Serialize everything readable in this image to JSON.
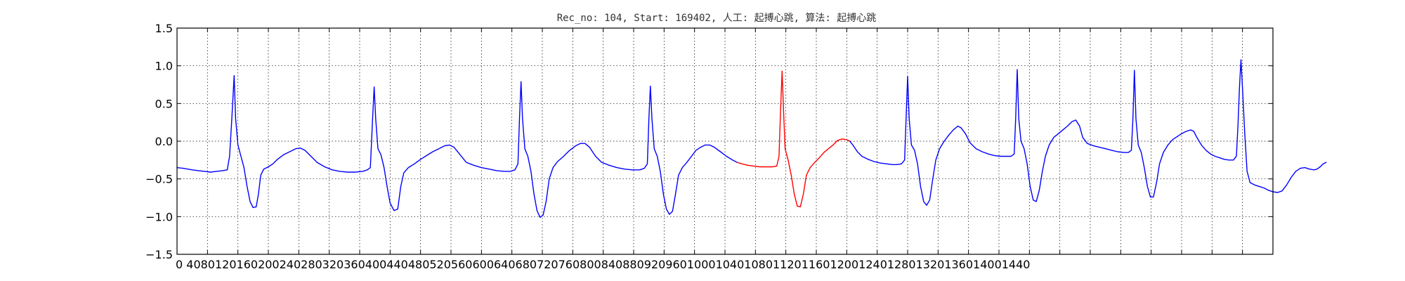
{
  "chart_data": {
    "type": "line",
    "title": "Rec_no: 104, Start: 169402, 人工: 起搏心跳, 算法: 起搏心跳",
    "xlabel": "",
    "ylabel": "",
    "xlim": [
      0,
      1440
    ],
    "ylim": [
      -1.5,
      1.5
    ],
    "grid": true,
    "x_ticks": [
      0,
      40,
      80,
      120,
      160,
      200,
      240,
      280,
      320,
      360,
      400,
      440,
      480,
      520,
      560,
      600,
      640,
      680,
      720,
      760,
      800,
      840,
      880,
      920,
      960,
      1000,
      1040,
      1080,
      1120,
      1160,
      1200,
      1240,
      1280,
      1320,
      1360,
      1400,
      1440
    ],
    "x_tick_text": "0 4080120160200240280320360400440480520560600640680720760800840880920960100010401080112011601200124012801320136014001440",
    "y_ticks": [
      1.5,
      1.0,
      0.5,
      0.0,
      -0.5,
      -1.0,
      -1.5
    ],
    "y_tick_labels": [
      "1.5",
      "1.0",
      "0.5",
      "0.0",
      "−0.5",
      "−1.0",
      "−1.5"
    ],
    "colors": {
      "normal": "#0000ff",
      "highlight": "#ff0000"
    },
    "series": [
      {
        "color": "#0000ff",
        "points": [
          [
            0,
            -0.35
          ],
          [
            8,
            -0.36
          ],
          [
            14,
            -0.37
          ],
          [
            20,
            -0.38
          ],
          [
            28,
            -0.39
          ],
          [
            36,
            -0.4
          ],
          [
            44,
            -0.41
          ],
          [
            52,
            -0.4
          ],
          [
            60,
            -0.39
          ],
          [
            66,
            -0.38
          ],
          [
            69,
            -0.2
          ],
          [
            72,
            0.3
          ],
          [
            75,
            0.87
          ],
          [
            77,
            0.3
          ],
          [
            80,
            -0.05
          ],
          [
            84,
            -0.2
          ],
          [
            88,
            -0.35
          ],
          [
            92,
            -0.6
          ],
          [
            96,
            -0.8
          ],
          [
            100,
            -0.88
          ],
          [
            104,
            -0.87
          ],
          [
            107,
            -0.7
          ],
          [
            110,
            -0.45
          ],
          [
            114,
            -0.37
          ],
          [
            120,
            -0.34
          ],
          [
            126,
            -0.3
          ],
          [
            132,
            -0.24
          ],
          [
            140,
            -0.18
          ],
          [
            148,
            -0.14
          ],
          [
            156,
            -0.1
          ],
          [
            162,
            -0.09
          ],
          [
            168,
            -0.12
          ],
          [
            176,
            -0.2
          ],
          [
            184,
            -0.28
          ],
          [
            194,
            -0.34
          ],
          [
            204,
            -0.38
          ],
          [
            214,
            -0.4
          ],
          [
            224,
            -0.41
          ],
          [
            234,
            -0.41
          ],
          [
            244,
            -0.4
          ],
          [
            250,
            -0.38
          ],
          [
            254,
            -0.35
          ],
          [
            257,
            0.3
          ],
          [
            259,
            0.72
          ],
          [
            261,
            0.3
          ],
          [
            264,
            -0.1
          ],
          [
            268,
            -0.18
          ],
          [
            272,
            -0.35
          ],
          [
            276,
            -0.6
          ],
          [
            280,
            -0.82
          ],
          [
            285,
            -0.92
          ],
          [
            290,
            -0.9
          ],
          [
            294,
            -0.6
          ],
          [
            298,
            -0.42
          ],
          [
            304,
            -0.35
          ],
          [
            312,
            -0.3
          ],
          [
            320,
            -0.24
          ],
          [
            328,
            -0.19
          ],
          [
            336,
            -0.14
          ],
          [
            344,
            -0.1
          ],
          [
            352,
            -0.06
          ],
          [
            358,
            -0.05
          ],
          [
            364,
            -0.08
          ],
          [
            372,
            -0.18
          ],
          [
            380,
            -0.28
          ],
          [
            390,
            -0.32
          ],
          [
            400,
            -0.35
          ],
          [
            410,
            -0.37
          ],
          [
            420,
            -0.39
          ],
          [
            430,
            -0.4
          ],
          [
            438,
            -0.4
          ],
          [
            444,
            -0.38
          ],
          [
            448,
            -0.3
          ],
          [
            450,
            0.3
          ],
          [
            452,
            0.79
          ],
          [
            454,
            0.3
          ],
          [
            457,
            -0.1
          ],
          [
            461,
            -0.2
          ],
          [
            465,
            -0.4
          ],
          [
            469,
            -0.7
          ],
          [
            473,
            -0.92
          ],
          [
            477,
            -1.01
          ],
          [
            481,
            -0.98
          ],
          [
            485,
            -0.8
          ],
          [
            489,
            -0.5
          ],
          [
            494,
            -0.35
          ],
          [
            500,
            -0.27
          ],
          [
            508,
            -0.2
          ],
          [
            516,
            -0.12
          ],
          [
            524,
            -0.06
          ],
          [
            530,
            -0.03
          ],
          [
            536,
            -0.03
          ],
          [
            542,
            -0.08
          ],
          [
            550,
            -0.2
          ],
          [
            558,
            -0.28
          ],
          [
            568,
            -0.32
          ],
          [
            578,
            -0.35
          ],
          [
            588,
            -0.37
          ],
          [
            598,
            -0.38
          ],
          [
            608,
            -0.38
          ],
          [
            614,
            -0.36
          ],
          [
            618,
            -0.3
          ],
          [
            620,
            0.3
          ],
          [
            622,
            0.73
          ],
          [
            624,
            0.3
          ],
          [
            627,
            -0.1
          ],
          [
            631,
            -0.2
          ],
          [
            635,
            -0.4
          ],
          [
            639,
            -0.7
          ],
          [
            643,
            -0.9
          ],
          [
            647,
            -0.97
          ],
          [
            651,
            -0.93
          ],
          [
            655,
            -0.7
          ],
          [
            659,
            -0.45
          ],
          [
            664,
            -0.35
          ],
          [
            670,
            -0.28
          ],
          [
            676,
            -0.2
          ],
          [
            682,
            -0.12
          ],
          [
            688,
            -0.08
          ],
          [
            694,
            -0.05
          ],
          [
            700,
            -0.05
          ],
          [
            706,
            -0.08
          ],
          [
            714,
            -0.14
          ],
          [
            722,
            -0.2
          ],
          [
            730,
            -0.25
          ],
          [
            736,
            -0.28
          ]
        ]
      },
      {
        "color": "#ff0000",
        "points": [
          [
            736,
            -0.28
          ],
          [
            742,
            -0.3
          ],
          [
            750,
            -0.32
          ],
          [
            758,
            -0.33
          ],
          [
            766,
            -0.34
          ],
          [
            774,
            -0.34
          ],
          [
            782,
            -0.34
          ],
          [
            788,
            -0.33
          ],
          [
            791,
            -0.2
          ],
          [
            793,
            0.4
          ],
          [
            795,
            0.93
          ],
          [
            797,
            0.4
          ],
          [
            799,
            -0.1
          ],
          [
            803,
            -0.25
          ],
          [
            807,
            -0.45
          ],
          [
            811,
            -0.7
          ],
          [
            815,
            -0.86
          ],
          [
            819,
            -0.87
          ],
          [
            823,
            -0.7
          ],
          [
            827,
            -0.45
          ],
          [
            832,
            -0.35
          ],
          [
            838,
            -0.28
          ],
          [
            844,
            -0.22
          ],
          [
            850,
            -0.15
          ],
          [
            856,
            -0.1
          ],
          [
            862,
            -0.05
          ],
          [
            868,
            0.01
          ],
          [
            874,
            0.03
          ],
          [
            880,
            0.02
          ],
          [
            884,
            0.0
          ]
        ]
      },
      {
        "color": "#0000ff",
        "points": [
          [
            884,
            0.0
          ],
          [
            888,
            -0.05
          ],
          [
            894,
            -0.14
          ],
          [
            900,
            -0.2
          ],
          [
            908,
            -0.24
          ],
          [
            916,
            -0.27
          ],
          [
            924,
            -0.29
          ],
          [
            932,
            -0.3
          ],
          [
            940,
            -0.31
          ],
          [
            946,
            -0.31
          ],
          [
            952,
            -0.3
          ],
          [
            956,
            -0.25
          ],
          [
            958,
            0.3
          ],
          [
            960,
            0.86
          ],
          [
            962,
            0.3
          ],
          [
            965,
            -0.05
          ],
          [
            969,
            -0.12
          ],
          [
            973,
            -0.3
          ],
          [
            977,
            -0.6
          ],
          [
            981,
            -0.8
          ],
          [
            985,
            -0.85
          ],
          [
            989,
            -0.78
          ],
          [
            993,
            -0.5
          ],
          [
            997,
            -0.25
          ],
          [
            1002,
            -0.1
          ],
          [
            1008,
            0.0
          ],
          [
            1014,
            0.08
          ],
          [
            1020,
            0.15
          ],
          [
            1026,
            0.2
          ],
          [
            1030,
            0.18
          ],
          [
            1036,
            0.1
          ],
          [
            1042,
            -0.02
          ],
          [
            1050,
            -0.1
          ],
          [
            1058,
            -0.14
          ],
          [
            1066,
            -0.17
          ],
          [
            1074,
            -0.19
          ],
          [
            1082,
            -0.2
          ],
          [
            1090,
            -0.2
          ],
          [
            1096,
            -0.2
          ],
          [
            1100,
            -0.17
          ],
          [
            1102,
            0.3
          ],
          [
            1104,
            0.95
          ],
          [
            1106,
            0.3
          ],
          [
            1109,
            0.0
          ],
          [
            1113,
            -0.1
          ],
          [
            1117,
            -0.3
          ],
          [
            1121,
            -0.6
          ],
          [
            1125,
            -0.78
          ],
          [
            1129,
            -0.8
          ],
          [
            1133,
            -0.65
          ],
          [
            1137,
            -0.4
          ],
          [
            1141,
            -0.2
          ],
          [
            1146,
            -0.05
          ],
          [
            1152,
            0.05
          ],
          [
            1158,
            0.1
          ],
          [
            1164,
            0.15
          ],
          [
            1170,
            0.2
          ],
          [
            1176,
            0.26
          ],
          [
            1181,
            0.28
          ],
          [
            1186,
            0.2
          ],
          [
            1190,
            0.05
          ],
          [
            1196,
            -0.03
          ],
          [
            1204,
            -0.06
          ],
          [
            1212,
            -0.08
          ],
          [
            1220,
            -0.1
          ],
          [
            1228,
            -0.12
          ],
          [
            1236,
            -0.14
          ],
          [
            1244,
            -0.15
          ],
          [
            1250,
            -0.15
          ],
          [
            1254,
            -0.12
          ],
          [
            1256,
            0.3
          ],
          [
            1258,
            0.94
          ],
          [
            1260,
            0.3
          ],
          [
            1263,
            -0.05
          ],
          [
            1267,
            -0.15
          ],
          [
            1271,
            -0.35
          ],
          [
            1275,
            -0.6
          ],
          [
            1279,
            -0.74
          ],
          [
            1283,
            -0.74
          ],
          [
            1287,
            -0.55
          ],
          [
            1291,
            -0.3
          ],
          [
            1296,
            -0.15
          ],
          [
            1302,
            -0.05
          ],
          [
            1308,
            0.02
          ],
          [
            1314,
            0.06
          ],
          [
            1320,
            0.1
          ],
          [
            1326,
            0.13
          ],
          [
            1332,
            0.15
          ],
          [
            1336,
            0.13
          ],
          [
            1340,
            0.05
          ],
          [
            1346,
            -0.05
          ],
          [
            1352,
            -0.12
          ],
          [
            1358,
            -0.17
          ],
          [
            1364,
            -0.2
          ],
          [
            1370,
            -0.22
          ],
          [
            1376,
            -0.24
          ],
          [
            1382,
            -0.25
          ],
          [
            1388,
            -0.25
          ],
          [
            1392,
            -0.2
          ],
          [
            1394,
            0.2
          ],
          [
            1396,
            0.7
          ],
          [
            1398,
            1.08
          ],
          [
            1400,
            0.7
          ],
          [
            1403,
            0.1
          ],
          [
            1406,
            -0.4
          ],
          [
            1410,
            -0.55
          ],
          [
            1416,
            -0.58
          ],
          [
            1422,
            -0.6
          ],
          [
            1428,
            -0.62
          ],
          [
            1434,
            -0.65
          ],
          [
            1440,
            -0.67
          ],
          [
            1446,
            -0.68
          ],
          [
            1452,
            -0.66
          ],
          [
            1458,
            -0.58
          ],
          [
            1464,
            -0.48
          ],
          [
            1470,
            -0.4
          ],
          [
            1476,
            -0.36
          ],
          [
            1482,
            -0.35
          ],
          [
            1488,
            -0.37
          ],
          [
            1494,
            -0.38
          ],
          [
            1498,
            -0.37
          ],
          [
            1502,
            -0.34
          ],
          [
            1506,
            -0.3
          ],
          [
            1510,
            -0.28
          ]
        ]
      }
    ]
  }
}
